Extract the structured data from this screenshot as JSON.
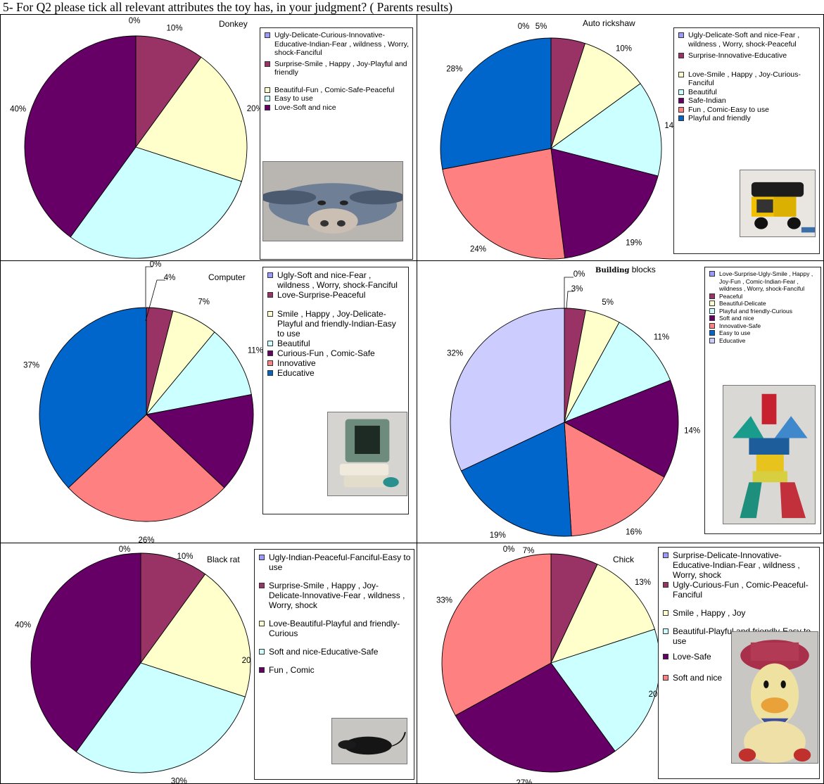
{
  "page": {
    "title": "5- For Q2 please tick all relevant attributes the toy has, in your judgment? ( Parents results)"
  },
  "colors": {
    "lavender": "#9999ff",
    "maroon": "#993366",
    "cream": "#ffffcc",
    "light_cyan": "#ccffff",
    "purple": "#660066",
    "salmon": "#ff8080",
    "blue": "#0066cc",
    "light_lavender": "#ccccff",
    "photo_bg": "#c8c8c8"
  },
  "panels": [
    {
      "toy_name": "Donkey",
      "photo_subject": "donkey-plush-toy",
      "chart_data": {
        "type": "pie",
        "title": "Donkey",
        "slices": [
          {
            "label": "Ugly-Delicate-Curious-Innovative-Educative-Indian-Fear , wildness , Worry, shock-Fanciful",
            "value": 0,
            "pct_label": "0%",
            "color": "#9999ff"
          },
          {
            "label": "Surprise-Smile , Happy , Joy-Playful and friendly",
            "value": 10,
            "pct_label": "10%",
            "color": "#993366"
          },
          {
            "label": "Beautiful-Fun , Comic-Safe-Peaceful",
            "value": 20,
            "pct_label": "20%",
            "color": "#ffffcc"
          },
          {
            "label": "Easy to use",
            "value": 30,
            "pct_label": "30%",
            "color": "#ccffff"
          },
          {
            "label": "Love-Soft and nice",
            "value": 40,
            "pct_label": "40%",
            "color": "#660066"
          }
        ],
        "legend_placement": "right"
      }
    },
    {
      "toy_name": "Auto rickshaw",
      "photo_subject": "auto-rickshaw-toy",
      "chart_data": {
        "type": "pie",
        "title": "Auto rickshaw",
        "slices": [
          {
            "label": "Ugly-Delicate-Soft and nice-Fear , wildness , Worry, shock-Peaceful",
            "value": 0,
            "pct_label": "0%",
            "color": "#9999ff"
          },
          {
            "label": "Surprise-Innovative-Educative",
            "value": 5,
            "pct_label": "5%",
            "color": "#993366"
          },
          {
            "label": "Love-Smile , Happy , Joy-Curious-Fanciful",
            "value": 10,
            "pct_label": "10%",
            "color": "#ffffcc"
          },
          {
            "label": "Beautiful",
            "value": 14,
            "pct_label": "14%",
            "color": "#ccffff"
          },
          {
            "label": "Safe-Indian",
            "value": 19,
            "pct_label": "19%",
            "color": "#660066"
          },
          {
            "label": "Fun , Comic-Easy to use",
            "value": 24,
            "pct_label": "24%",
            "color": "#ff8080"
          },
          {
            "label": "Playful and friendly",
            "value": 28,
            "pct_label": "28%",
            "color": "#0066cc"
          }
        ],
        "legend_placement": "right"
      }
    },
    {
      "toy_name": "Computer",
      "photo_subject": "toy-computer",
      "chart_data": {
        "type": "pie",
        "title": "Computer",
        "slices": [
          {
            "label": "Ugly-Soft and nice-Fear , wildness , Worry, shock-Fanciful",
            "value": 0,
            "pct_label": "0%",
            "color": "#9999ff"
          },
          {
            "label": "Love-Surprise-Peaceful",
            "value": 4,
            "pct_label": "4%",
            "color": "#993366"
          },
          {
            "label": "Smile , Happy , Joy-Delicate-Playful and friendly-Indian-Easy to use",
            "value": 7,
            "pct_label": "7%",
            "color": "#ffffcc"
          },
          {
            "label": "Beautiful",
            "value": 11,
            "pct_label": "11%",
            "color": "#ccffff"
          },
          {
            "label": "Curious-Fun , Comic-Safe",
            "value": 15,
            "pct_label": "15",
            "color": "#660066"
          },
          {
            "label": "Innovative",
            "value": 26,
            "pct_label": "26%",
            "color": "#ff8080"
          },
          {
            "label": "Educative",
            "value": 37,
            "pct_label": "37%",
            "color": "#0066cc"
          }
        ],
        "legend_placement": "right"
      }
    },
    {
      "toy_name_bold": "Building",
      "toy_name_rest": " blocks",
      "photo_subject": "building-blocks-toy",
      "chart_data": {
        "type": "pie",
        "slices": [
          {
            "label": "Love-Surprise-Ugly-Smile , Happy , Joy-Fun , Comic-Indian-Fear , wildness , Worry, shock-Fanciful",
            "value": 0,
            "pct_label": "0%",
            "color": "#9999ff"
          },
          {
            "label": "Peaceful",
            "value": 3,
            "pct_label": "3%",
            "color": "#993366"
          },
          {
            "label": "Beautiful-Delicate",
            "value": 5,
            "pct_label": "5%",
            "color": "#ffffcc"
          },
          {
            "label": "Playful and friendly-Curious",
            "value": 11,
            "pct_label": "11%",
            "color": "#ccffff"
          },
          {
            "label": "Soft and nice",
            "value": 14,
            "pct_label": "14%",
            "color": "#660066"
          },
          {
            "label": "Innovative-Safe",
            "value": 16,
            "pct_label": "16%",
            "color": "#ff8080"
          },
          {
            "label": "Easy to use",
            "value": 19,
            "pct_label": "19%",
            "color": "#0066cc"
          },
          {
            "label": "Educative",
            "value": 32,
            "pct_label": "32%",
            "color": "#ccccff"
          }
        ],
        "legend_placement": "right"
      }
    },
    {
      "toy_name": "Black rat",
      "photo_subject": "black-rat-toy",
      "chart_data": {
        "type": "pie",
        "title": "Black rat",
        "slices": [
          {
            "label": "Ugly-Indian-Peaceful-Fanciful-Easy to use",
            "value": 0,
            "pct_label": "0%",
            "color": "#9999ff"
          },
          {
            "label": "Surprise-Smile , Happy , Joy-Delicate-Innovative-Fear , wildness , Worry, shock",
            "value": 10,
            "pct_label": "10%",
            "color": "#993366"
          },
          {
            "label": "Love-Beautiful-Playful and friendly-Curious",
            "value": 20,
            "pct_label": "20",
            "color": "#ffffcc"
          },
          {
            "label": "Soft and nice-Educative-Safe",
            "value": 30,
            "pct_label": "30%",
            "color": "#ccffff"
          },
          {
            "label": "Fun , Comic",
            "value": 40,
            "pct_label": "40%",
            "color": "#660066"
          }
        ],
        "legend_placement": "right"
      }
    },
    {
      "toy_name": "Chick",
      "photo_subject": "chick-plush-toy",
      "chart_data": {
        "type": "pie",
        "title": "Chick",
        "slices": [
          {
            "label": "Surprise-Delicate-Innovative-Educative-Indian-Fear , wildness , Worry, shock",
            "value": 0,
            "pct_label": "0%",
            "color": "#9999ff"
          },
          {
            "label": "Ugly-Curious-Fun , Comic-Peaceful-Fanciful",
            "value": 7,
            "pct_label": "7%",
            "color": "#993366"
          },
          {
            "label": "Smile , Happy , Joy",
            "value": 13,
            "pct_label": "13%",
            "color": "#ffffcc"
          },
          {
            "label": "Beautiful-Playful and friendly-Easy to use",
            "value": 20,
            "pct_label": "20",
            "color": "#ccffff"
          },
          {
            "label": "Love-Safe",
            "value": 27,
            "pct_label": "27%",
            "color": "#660066"
          },
          {
            "label": "Soft and nice",
            "value": 33,
            "pct_label": "33%",
            "color": "#ff8080"
          }
        ],
        "legend_placement": "right"
      }
    }
  ]
}
